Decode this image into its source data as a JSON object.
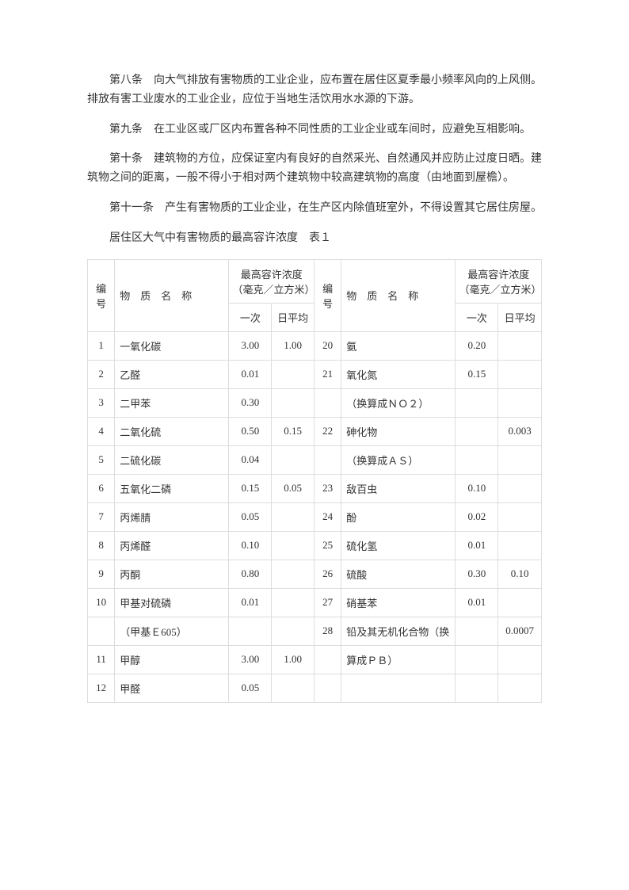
{
  "paragraphs": {
    "p1": "第八条　向大气排放有害物质的工业企业，应布置在居住区夏季最小频率风向的上风侧。排放有害工业废水的工业企业，应位于当地生活饮用水水源的下游。",
    "p2": "第九条　在工业区或厂区内布置各种不同性质的工业企业或车间时，应避免互相影响。",
    "p3": "第十条　建筑物的方位，应保证室内有良好的自然采光、自然通风并应防止过度日晒。建筑物之间的距离，一般不得小于相对两个建筑物中较高建筑物的高度（由地面到屋檐）。",
    "p4": "第十一条　产生有害物质的工业企业，在生产区内除值班室外，不得设置其它居住房屋。"
  },
  "tableCaption": "居住区大气中有害物质的最高容许浓度　表１",
  "headers": {
    "num": "编号",
    "name": "物　质　名　称",
    "conc": "最高容许浓度（毫克／立方米）",
    "once": "一次",
    "daily": "日平均"
  },
  "rows": [
    {
      "n1": "1",
      "name1": "一氧化碳",
      "o1": "3.00",
      "d1": "1.00",
      "n2": "20",
      "name2": "氨",
      "o2": "0.20",
      "d2": ""
    },
    {
      "n1": "2",
      "name1": "乙醛",
      "o1": "0.01",
      "d1": "",
      "n2": "21",
      "name2": "氧化氮",
      "o2": "0.15",
      "d2": ""
    },
    {
      "n1": "3",
      "name1": "二甲苯",
      "o1": "0.30",
      "d1": "",
      "n2": "",
      "name2": "（换算成ＮＯ２）",
      "o2": "",
      "d2": ""
    },
    {
      "n1": "4",
      "name1": "二氧化硫",
      "o1": "0.50",
      "d1": "0.15",
      "n2": "22",
      "name2": "砷化物",
      "o2": "",
      "d2": "0.003"
    },
    {
      "n1": "5",
      "name1": "二硫化碳",
      "o1": "0.04",
      "d1": "",
      "n2": "",
      "name2": "（换算成ＡＳ）",
      "o2": "",
      "d2": ""
    },
    {
      "n1": "6",
      "name1": "五氧化二磷",
      "o1": "0.15",
      "d1": "0.05",
      "n2": "23",
      "name2": "敌百虫",
      "o2": "0.10",
      "d2": ""
    },
    {
      "n1": "7",
      "name1": "丙烯腈",
      "o1": "0.05",
      "d1": "",
      "n2": "24",
      "name2": "酚",
      "o2": "0.02",
      "d2": ""
    },
    {
      "n1": "8",
      "name1": "丙烯醛",
      "o1": "0.10",
      "d1": "",
      "n2": "25",
      "name2": "硫化氢",
      "o2": "0.01",
      "d2": ""
    },
    {
      "n1": "9",
      "name1": "丙酮",
      "o1": "0.80",
      "d1": "",
      "n2": "26",
      "name2": "硫酸",
      "o2": "0.30",
      "d2": "0.10"
    },
    {
      "n1": "10",
      "name1": "甲基对硫磷",
      "o1": "0.01",
      "d1": "",
      "n2": "27",
      "name2": "硝基苯",
      "o2": "0.01",
      "d2": ""
    },
    {
      "n1": "",
      "name1": "（甲基Ｅ605）",
      "o1": "",
      "d1": "",
      "n2": "28",
      "name2": "铅及其无机化合物（换",
      "o2": "",
      "d2": "0.0007"
    },
    {
      "n1": "11",
      "name1": "甲醇",
      "o1": "3.00",
      "d1": "1.00",
      "n2": "",
      "name2": "算成ＰＢ）",
      "o2": "",
      "d2": ""
    },
    {
      "n1": "12",
      "name1": "甲醛",
      "o1": "0.05",
      "d1": "",
      "n2": "",
      "name2": "",
      "o2": "",
      "d2": ""
    }
  ]
}
